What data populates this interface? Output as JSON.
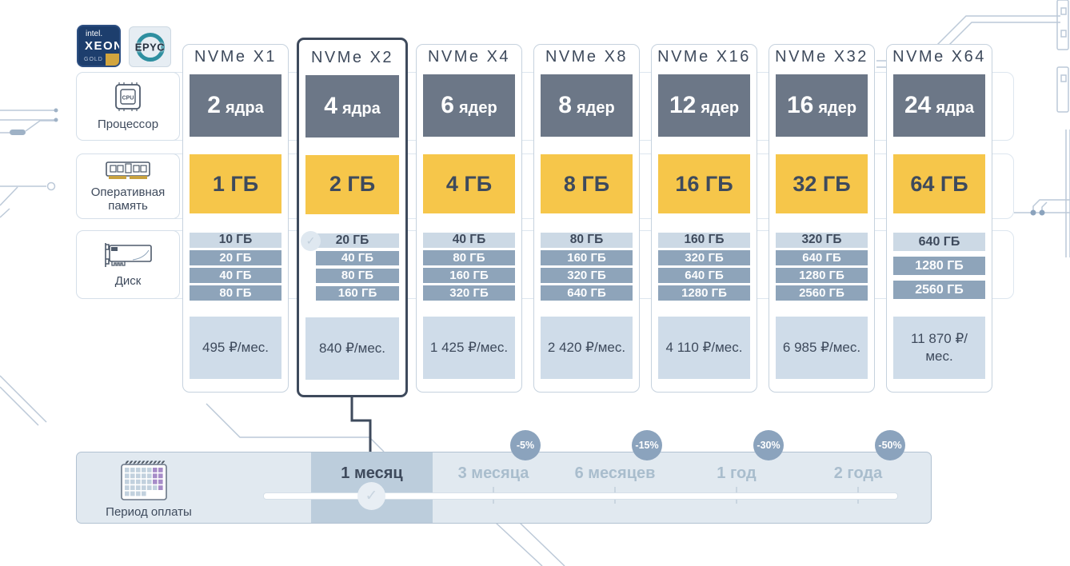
{
  "brand": {
    "intel": {
      "top": "intel.",
      "mid": "XEON",
      "bottom": "GOLD"
    },
    "amd": "EPYC"
  },
  "sidebar": {
    "items": [
      {
        "id": "cpu",
        "label": "Процессор"
      },
      {
        "id": "ram",
        "label": "Оперативная память"
      },
      {
        "id": "disk",
        "label": "Диск"
      }
    ]
  },
  "plans": [
    {
      "name": "NVMe X1",
      "cores": "2",
      "cores_unit": "ядра",
      "ram": "1 ГБ",
      "disks": [
        "10 ГБ",
        "20 ГБ",
        "40 ГБ",
        "80 ГБ"
      ],
      "selected_disk_index": 0,
      "price": "495 ₽/мес.",
      "selected": false
    },
    {
      "name": "NVMe X2",
      "cores": "4",
      "cores_unit": "ядра",
      "ram": "2 ГБ",
      "disks": [
        "20 ГБ",
        "40 ГБ",
        "80 ГБ",
        "160 ГБ"
      ],
      "selected_disk_index": 0,
      "price": "840 ₽/мес.",
      "selected": true
    },
    {
      "name": "NVMe X4",
      "cores": "6",
      "cores_unit": "ядер",
      "ram": "4 ГБ",
      "disks": [
        "40 ГБ",
        "80 ГБ",
        "160 ГБ",
        "320 ГБ"
      ],
      "selected_disk_index": 0,
      "price": "1 425 ₽/мес.",
      "selected": false
    },
    {
      "name": "NVMe X8",
      "cores": "8",
      "cores_unit": "ядер",
      "ram": "8 ГБ",
      "disks": [
        "80 ГБ",
        "160 ГБ",
        "320 ГБ",
        "640 ГБ"
      ],
      "selected_disk_index": 0,
      "price": "2 420 ₽/мес.",
      "selected": false
    },
    {
      "name": "NVMe X16",
      "cores": "12",
      "cores_unit": "ядер",
      "ram": "16 ГБ",
      "disks": [
        "160 ГБ",
        "320 ГБ",
        "640 ГБ",
        "1280 ГБ"
      ],
      "selected_disk_index": 0,
      "price": "4 110 ₽/мес.",
      "selected": false
    },
    {
      "name": "NVMe X32",
      "cores": "16",
      "cores_unit": "ядер",
      "ram": "32 ГБ",
      "disks": [
        "320 ГБ",
        "640 ГБ",
        "1280 ГБ",
        "2560 ГБ"
      ],
      "selected_disk_index": 0,
      "price": "6 985 ₽/мес.",
      "selected": false
    },
    {
      "name": "NVMe X64",
      "cores": "24",
      "cores_unit": "ядра",
      "ram": "64 ГБ",
      "disks": [
        "640 ГБ",
        "1280 ГБ",
        "2560 ГБ"
      ],
      "selected_disk_index": 0,
      "price": "11 870 ₽/мес.",
      "selected": false
    }
  ],
  "period": {
    "label": "Период оплаты",
    "selected_index": 0,
    "options": [
      {
        "label": "1 месяц",
        "discount": ""
      },
      {
        "label": "3 месяца",
        "discount": "-5%"
      },
      {
        "label": "6 месяцев",
        "discount": "-15%"
      },
      {
        "label": "1 год",
        "discount": "-30%"
      },
      {
        "label": "2 года",
        "discount": "-50%"
      }
    ]
  },
  "icons": {
    "check": "✓"
  },
  "colors": {
    "text_dark": "#3e4a5c",
    "core_slate": "#6c7787",
    "accent_yellow": "#f6c64a",
    "disk_blue": "#8ea4ba",
    "disk_selected": "#ccd9e5",
    "price_bg": "#cfdce9",
    "bar_bg": "#e1e9f0",
    "bar_selected": "#bccddc",
    "badge_blue": "#8ba3bd",
    "inactive_text": "#a9bdcd",
    "trace": "#bcc9d8"
  }
}
